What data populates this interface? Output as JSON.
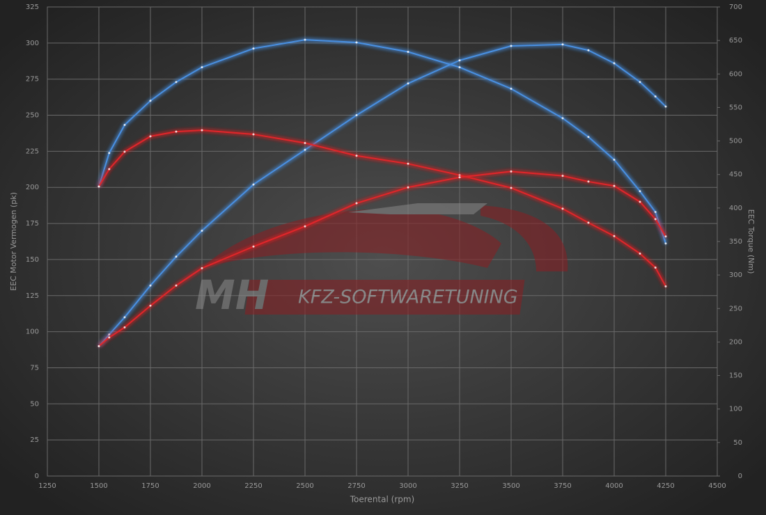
{
  "chart_data": {
    "type": "line",
    "x": [
      1500,
      1550,
      1625,
      1750,
      1875,
      2000,
      2250,
      2500,
      2750,
      3000,
      3250,
      3500,
      3750,
      3875,
      4000,
      4125,
      4200,
      4250
    ],
    "series": [
      {
        "color": "#4a90e2",
        "values": [
          90,
          98,
          110,
          132,
          152,
          170,
          202,
          226,
          250,
          272,
          288,
          298,
          299,
          295,
          286,
          273,
          263,
          256
        ]
      },
      {
        "color": "#4a90e2",
        "axis": "y2",
        "values": [
          432,
          482,
          524,
          560,
          588,
          610,
          638,
          651,
          647,
          633,
          610,
          578,
          534,
          506,
          472,
          425,
          394,
          347
        ]
      },
      {
        "color": "#e0282a",
        "axis": "y2",
        "values": [
          432,
          458,
          484,
          507,
          514,
          516,
          510,
          497,
          478,
          466,
          449,
          430,
          399,
          378,
          358,
          332,
          311,
          283
        ]
      },
      {
        "color": "#e0282a",
        "values": [
          90,
          96,
          103,
          118,
          132,
          144,
          159,
          173,
          189,
          200,
          207,
          211,
          208,
          204,
          201,
          190,
          178,
          166
        ]
      }
    ],
    "xlabel": "Toerental (rpm)",
    "ylabel": "EEC Motor Vermogen (pk)",
    "y2label": "EEC Torque (Nm)",
    "xlim": [
      1250,
      4500
    ],
    "xticks": [
      1250,
      1500,
      1750,
      2000,
      2250,
      2500,
      2750,
      3000,
      3250,
      3500,
      3750,
      4000,
      4250,
      4500
    ],
    "ylim": [
      0,
      325
    ],
    "yticks": [
      0,
      25,
      50,
      75,
      100,
      125,
      150,
      175,
      200,
      225,
      250,
      275,
      300,
      325
    ],
    "y2lim": [
      0,
      700
    ],
    "y2ticks": [
      0,
      50,
      100,
      150,
      200,
      250,
      300,
      350,
      400,
      450,
      500,
      550,
      600,
      650,
      700
    ],
    "grid": true,
    "watermark": {
      "logo": "MH",
      "text": "KFZ-SOFTWARETUNING"
    }
  }
}
